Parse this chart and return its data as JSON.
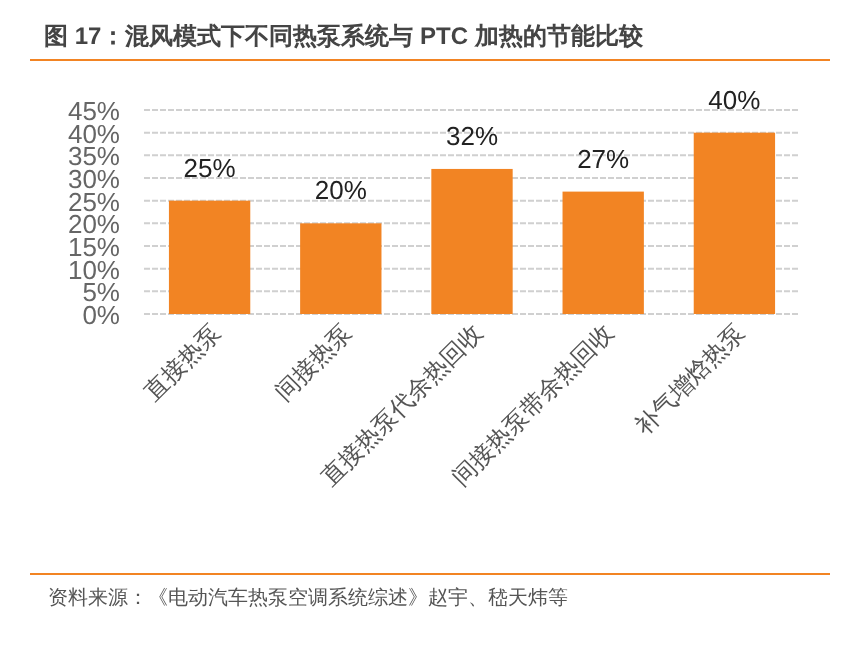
{
  "chart_data": {
    "type": "bar",
    "title": "图 17：混风模式下不同热泵系统与 PTC 加热的节能比较",
    "categories": [
      "直接热泵",
      "间接热泵",
      "直接热泵代余热回收",
      "间接热泵带余热回收",
      "补气增焓热泵"
    ],
    "values": [
      25,
      20,
      32,
      27,
      40
    ],
    "value_labels": [
      "25%",
      "20%",
      "32%",
      "27%",
      "40%"
    ],
    "color": "#f28423",
    "ylim": [
      0,
      45
    ],
    "yticks": [
      {
        "value": 0,
        "label": "0%"
      },
      {
        "value": 5,
        "label": "5%"
      },
      {
        "value": 10,
        "label": "10%"
      },
      {
        "value": 15,
        "label": "15%"
      },
      {
        "value": 20,
        "label": "20%"
      },
      {
        "value": 25,
        "label": "25%"
      },
      {
        "value": 30,
        "label": "30%"
      },
      {
        "value": 35,
        "label": "35%"
      },
      {
        "value": 40,
        "label": "40%"
      },
      {
        "value": 45,
        "label": "45%"
      }
    ],
    "grid": "y",
    "annotations": [
      "资料来源：《电动汽车热泵空调系统综述》赵宇、嵇天炜等"
    ]
  }
}
